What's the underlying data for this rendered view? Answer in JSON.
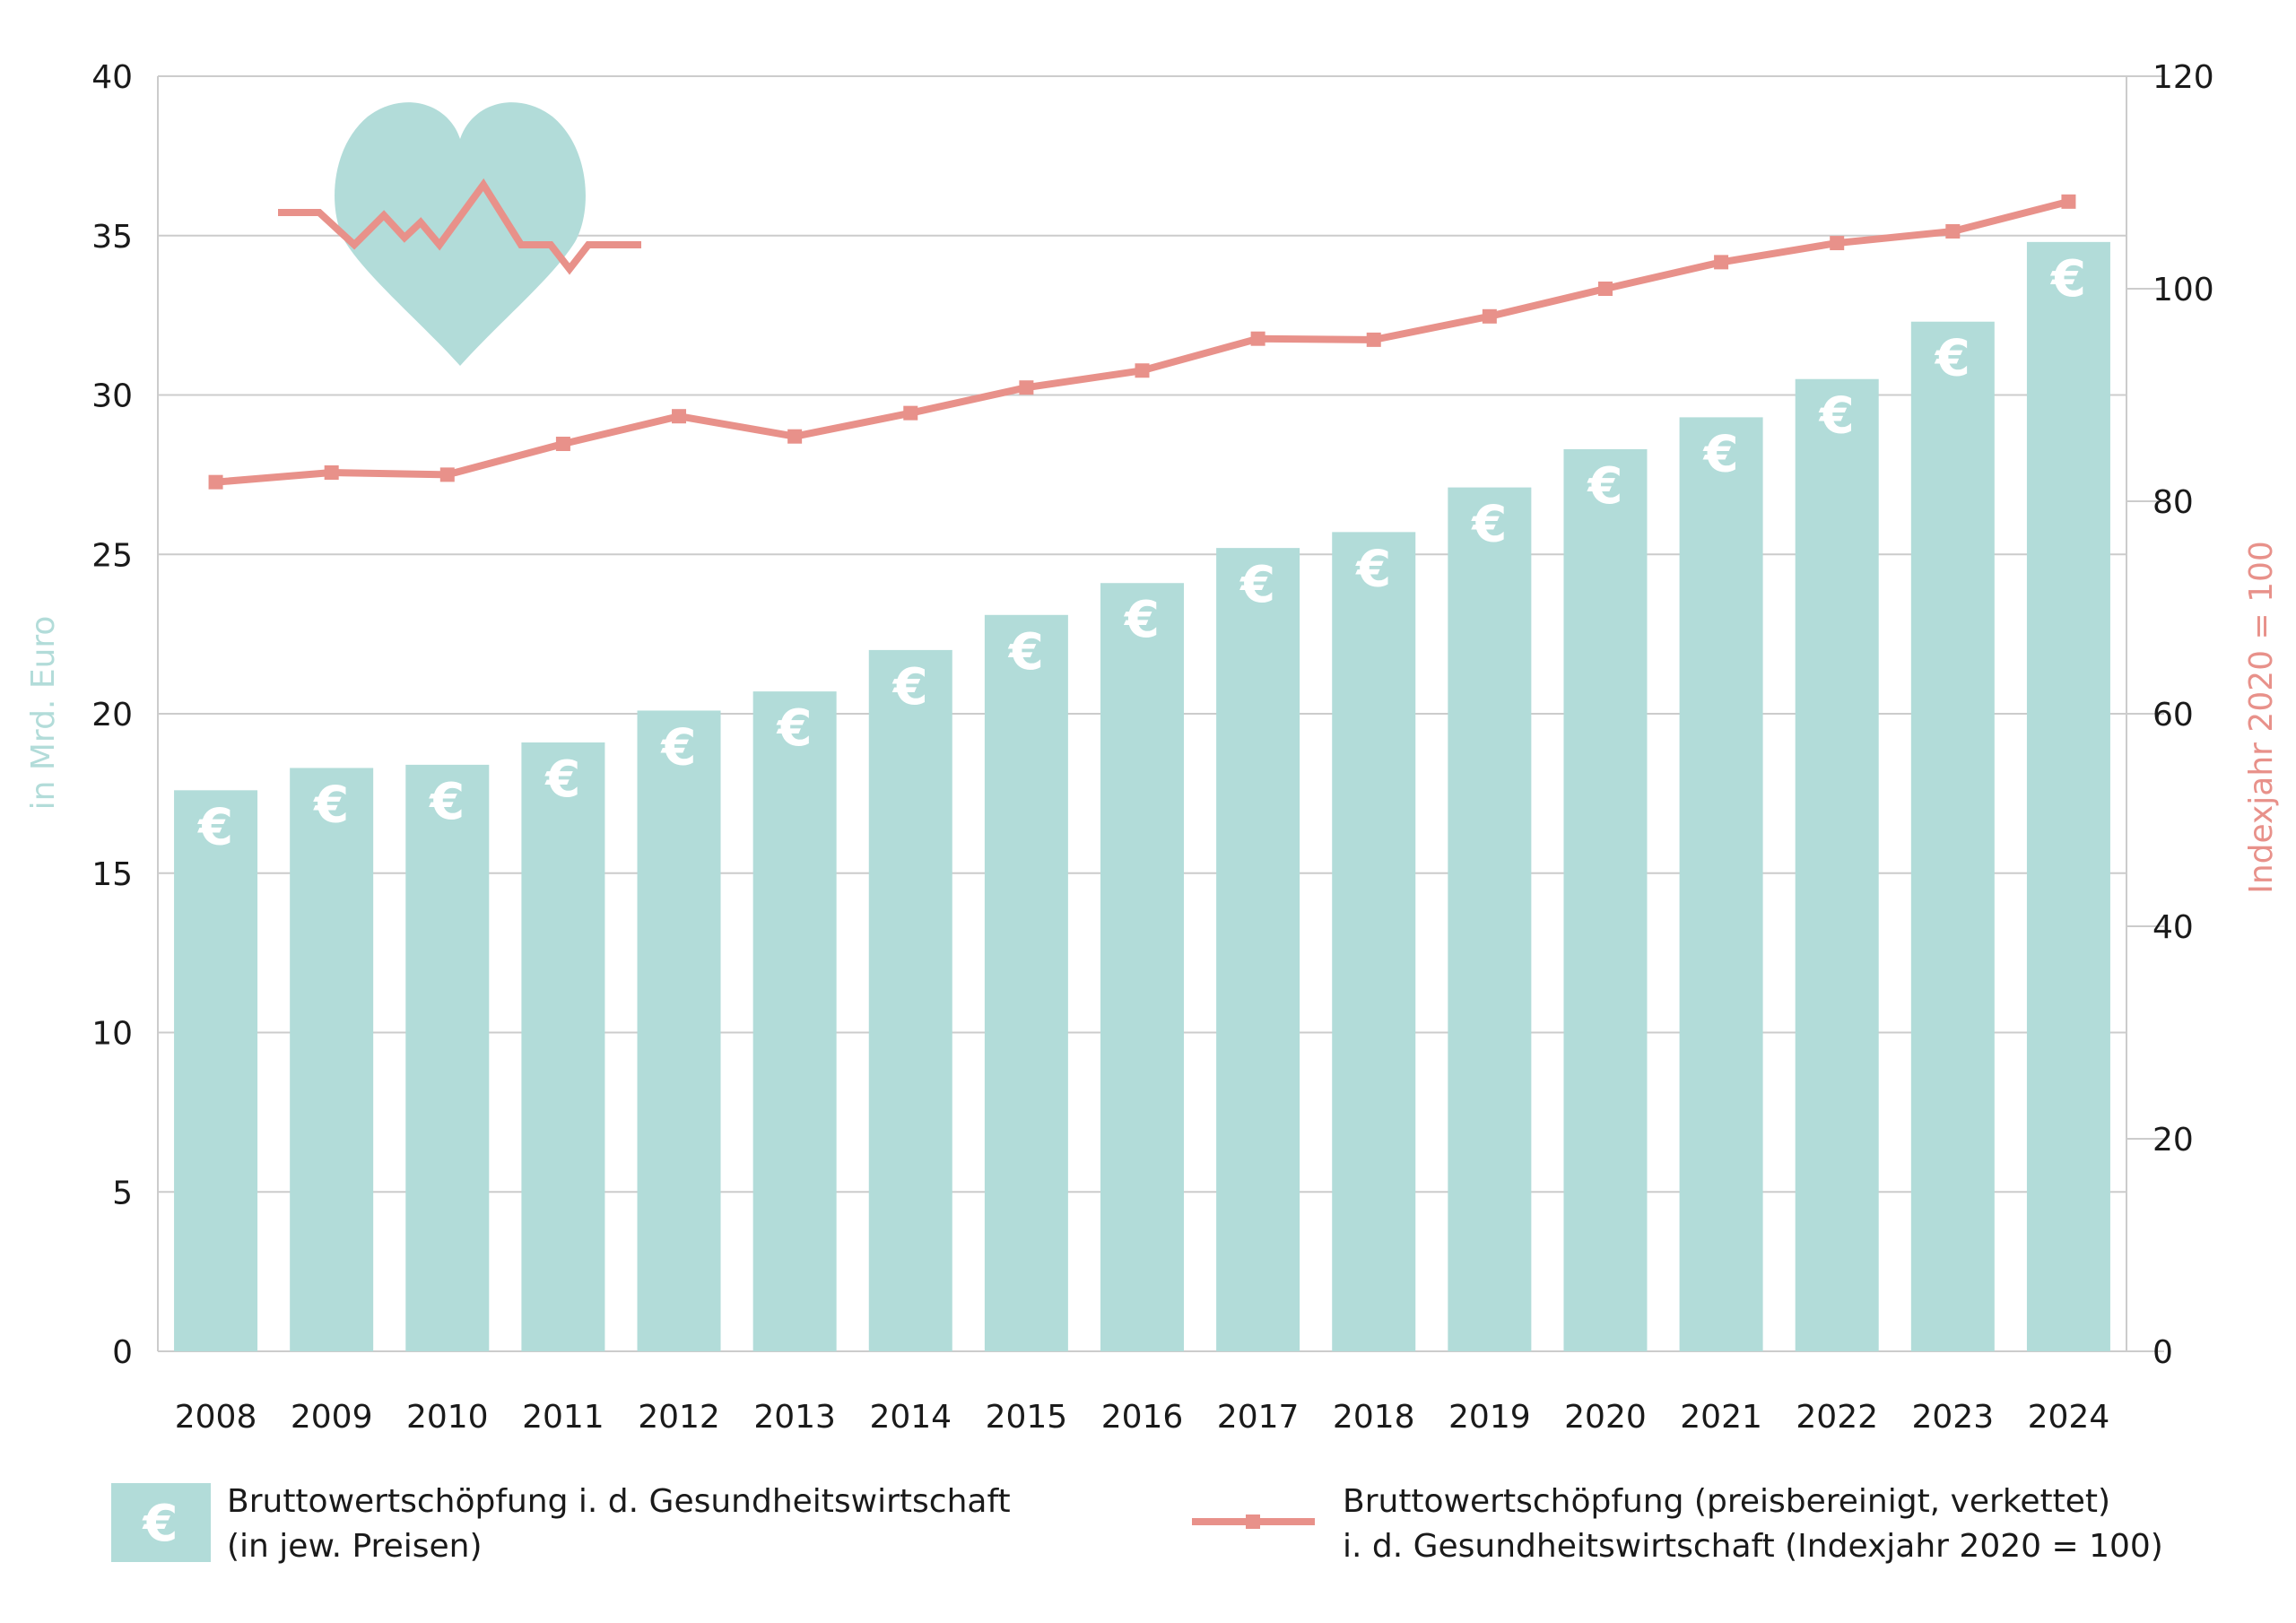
{
  "chart_data": {
    "type": "bar+line",
    "categories": [
      "2008",
      "2009",
      "2010",
      "2011",
      "2012",
      "2013",
      "2014",
      "2015",
      "2016",
      "2017",
      "2018",
      "2019",
      "2020",
      "2021",
      "2022",
      "2023",
      "2024"
    ],
    "series": [
      {
        "name": "Bruttowertschöpfung i. d. Gesundheitswirtschaft (in jew. Preisen)",
        "type": "bar",
        "axis": "left",
        "values": [
          17.6,
          18.3,
          18.4,
          19.1,
          20.1,
          20.7,
          22.0,
          23.1,
          24.1,
          25.2,
          25.7,
          27.1,
          28.3,
          29.3,
          30.5,
          32.3,
          34.8
        ]
      },
      {
        "name": "Bruttowertschöpfung (preisbereinigt, verkettet) i. d. Gesundheitswirtschaft (Indexjahr 2020 = 100)",
        "type": "line",
        "axis": "right",
        "values": [
          81.8,
          82.7,
          82.5,
          85.4,
          88.0,
          86.1,
          88.3,
          90.7,
          92.3,
          95.3,
          95.2,
          97.4,
          100.0,
          102.5,
          104.3,
          105.4,
          108.2
        ]
      }
    ],
    "left_axis": {
      "label": "in Mrd. Euro",
      "ylim": [
        0,
        40
      ],
      "ticks": [
        "0",
        "5",
        "10",
        "15",
        "20",
        "25",
        "30",
        "35",
        "40"
      ]
    },
    "right_axis": {
      "label": "Indexjahr 2020 = 100",
      "ylim": [
        0,
        120
      ],
      "ticks": [
        "0",
        "20",
        "40",
        "60",
        "80",
        "100",
        "120"
      ]
    },
    "bar_symbol": "€",
    "grid": true,
    "legend_position": "bottom",
    "legend": [
      {
        "line1": "Bruttowertschöpfung i. d. Gesundheitswirtschaft",
        "line2": "(in jew. Preisen)"
      },
      {
        "line1": "Bruttowertschöpfung (preisbereinigt, verkettet)",
        "line2": "i. d. Gesundheitswirtschaft (Indexjahr 2020 = 100)"
      }
    ],
    "decoration_icon": "heart-with-pulse-icon",
    "colors": {
      "bar": "#b2dcd9",
      "line": "#e8918a",
      "left_axis_label": "#b2dcd9",
      "right_axis_label": "#e8918a",
      "grid": "#cccccc"
    }
  }
}
